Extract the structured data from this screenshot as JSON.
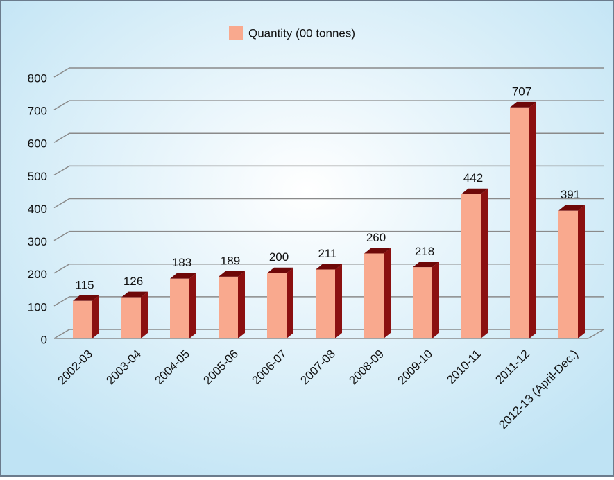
{
  "chart_data": {
    "type": "bar",
    "categories": [
      "2002-03",
      "2003-04",
      "2004-05",
      "2005-06",
      "2006-07",
      "2007-08",
      "2008-09",
      "2009-10",
      "2010-11",
      "2011-12",
      "2012-13 (April-Dec.)"
    ],
    "series": [
      {
        "name": "Quantity (00 tonnes)",
        "color": "#f9a98e",
        "values": [
          115,
          126,
          183,
          189,
          200,
          211,
          260,
          218,
          442,
          707,
          391
        ]
      }
    ],
    "ylim": [
      0,
      800
    ],
    "yticks": [
      0,
      100,
      200,
      300,
      400,
      500,
      600,
      700,
      800
    ],
    "grid": true,
    "legend": "top"
  }
}
